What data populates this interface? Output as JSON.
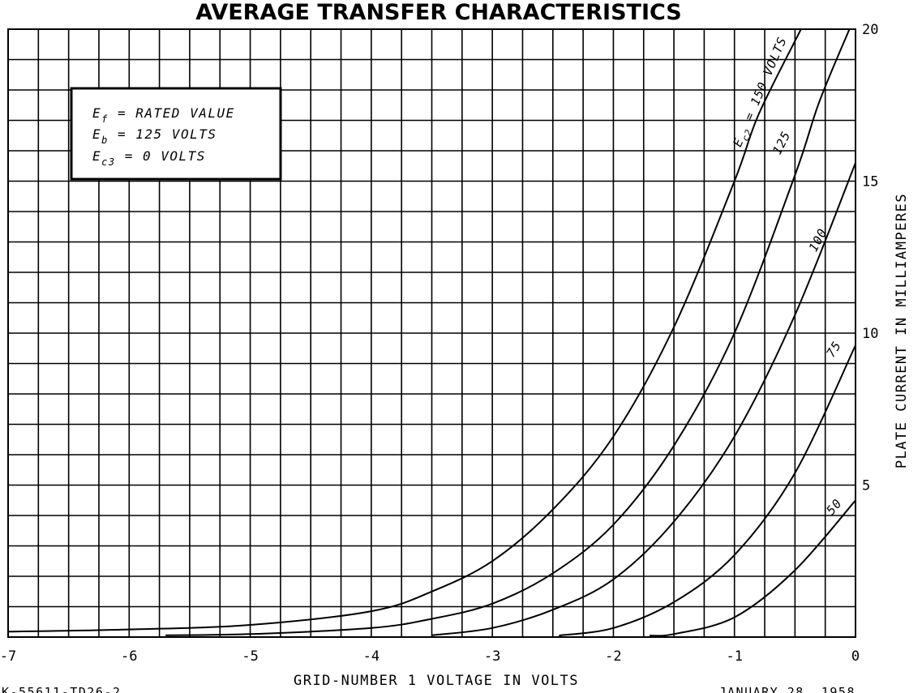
{
  "chart_data": {
    "type": "line",
    "title": "AVERAGE TRANSFER CHARACTERISTICS",
    "xlabel": "GRID-NUMBER 1 VOLTAGE IN VOLTS",
    "ylabel": "PLATE CURRENT IN MILLIAMPERES",
    "xlim": [
      -7,
      0
    ],
    "ylim": [
      0,
      20
    ],
    "x_ticks": [
      "-7",
      "-6",
      "-5",
      "-4",
      "-3",
      "-2",
      "-1",
      "0"
    ],
    "y_ticks": [
      "5",
      "10",
      "15",
      "20"
    ],
    "grid": true,
    "conditions": {
      "line1": "E",
      "line1_sub": "f",
      "line1_rest": " = RATED VALUE",
      "line2": "E",
      "line2_sub": "b",
      "line2_rest": " = 125 VOLTS",
      "line3": "E",
      "line3_sub": "c3",
      "line3_rest": " = 0 VOLTS"
    },
    "series": [
      {
        "name": "Ec2 = 150 VOLTS",
        "label_prefix": "E",
        "label_sub": "c2",
        "label_rest": " = 150 VOLTS",
        "points": [
          [
            -7,
            0.18
          ],
          [
            -6,
            0.25
          ],
          [
            -5,
            0.4
          ],
          [
            -4,
            0.85
          ],
          [
            -3.5,
            1.5
          ],
          [
            -3,
            2.5
          ],
          [
            -2.5,
            4.2
          ],
          [
            -2,
            6.6
          ],
          [
            -1.5,
            10.2
          ],
          [
            -1,
            15.0
          ],
          [
            -0.8,
            17.2
          ],
          [
            -0.45,
            20.0
          ]
        ]
      },
      {
        "name": "125",
        "points": [
          [
            -5.7,
            0.06
          ],
          [
            -5,
            0.1
          ],
          [
            -4,
            0.3
          ],
          [
            -3.5,
            0.6
          ],
          [
            -3,
            1.1
          ],
          [
            -2.5,
            2.1
          ],
          [
            -2,
            3.7
          ],
          [
            -1.5,
            6.3
          ],
          [
            -1,
            10.0
          ],
          [
            -0.5,
            15.2
          ],
          [
            -0.3,
            17.6
          ],
          [
            -0.05,
            20.0
          ]
        ]
      },
      {
        "name": "100",
        "points": [
          [
            -3.5,
            0.06
          ],
          [
            -3,
            0.3
          ],
          [
            -2.5,
            0.9
          ],
          [
            -2,
            1.9
          ],
          [
            -1.5,
            3.8
          ],
          [
            -1,
            6.6
          ],
          [
            -0.5,
            10.6
          ],
          [
            0,
            15.6
          ]
        ]
      },
      {
        "name": "75",
        "points": [
          [
            -2.45,
            0.05
          ],
          [
            -2,
            0.3
          ],
          [
            -1.5,
            1.15
          ],
          [
            -1,
            2.7
          ],
          [
            -0.5,
            5.4
          ],
          [
            0,
            9.6
          ]
        ]
      },
      {
        "name": "50",
        "points": [
          [
            -1.7,
            0.05
          ],
          [
            -1.5,
            0.1
          ],
          [
            -1,
            0.65
          ],
          [
            -0.5,
            2.2
          ],
          [
            0,
            4.5
          ]
        ]
      }
    ]
  },
  "footer": {
    "left_code": "K-55611-TD26-2",
    "date": "JANUARY 28, 1958"
  }
}
